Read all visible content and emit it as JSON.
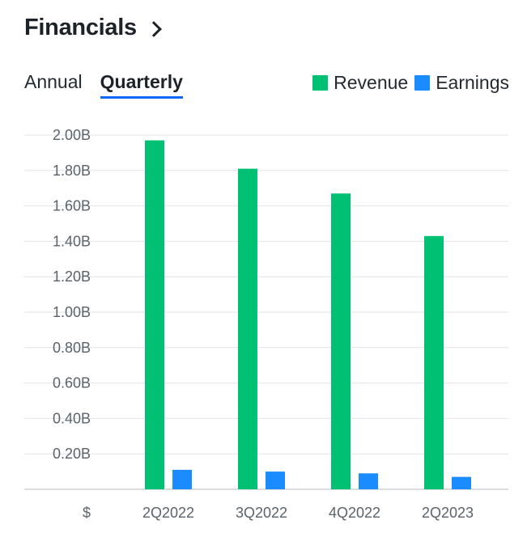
{
  "header": {
    "title": "Financials"
  },
  "tabs": [
    {
      "label": "Annual",
      "active": false
    },
    {
      "label": "Quarterly",
      "active": true
    }
  ],
  "legend": [
    {
      "label": "Revenue",
      "color": "#00c073"
    },
    {
      "label": "Earnings",
      "color": "#1a8cff"
    }
  ],
  "chart_data": {
    "type": "bar",
    "categories": [
      "2Q2022",
      "3Q2022",
      "4Q2022",
      "2Q2023"
    ],
    "series": [
      {
        "name": "Revenue",
        "color": "#00c073",
        "values": [
          1.97,
          1.81,
          1.67,
          1.43
        ]
      },
      {
        "name": "Earnings",
        "color": "#1a8cff",
        "values": [
          0.11,
          0.1,
          0.09,
          0.07
        ]
      }
    ],
    "unit_label": "$",
    "yticks": [
      {
        "value": 0.2,
        "label": "0.20B"
      },
      {
        "value": 0.4,
        "label": "0.40B"
      },
      {
        "value": 0.6,
        "label": "0.60B"
      },
      {
        "value": 0.8,
        "label": "0.80B"
      },
      {
        "value": 1.0,
        "label": "1.00B"
      },
      {
        "value": 1.2,
        "label": "1.20B"
      },
      {
        "value": 1.4,
        "label": "1.40B"
      },
      {
        "value": 1.6,
        "label": "1.60B"
      },
      {
        "value": 1.8,
        "label": "1.80B"
      },
      {
        "value": 2.0,
        "label": "2.00B"
      }
    ],
    "ylim": [
      0,
      2.0
    ],
    "grid": true,
    "legend_position": "top-right"
  }
}
